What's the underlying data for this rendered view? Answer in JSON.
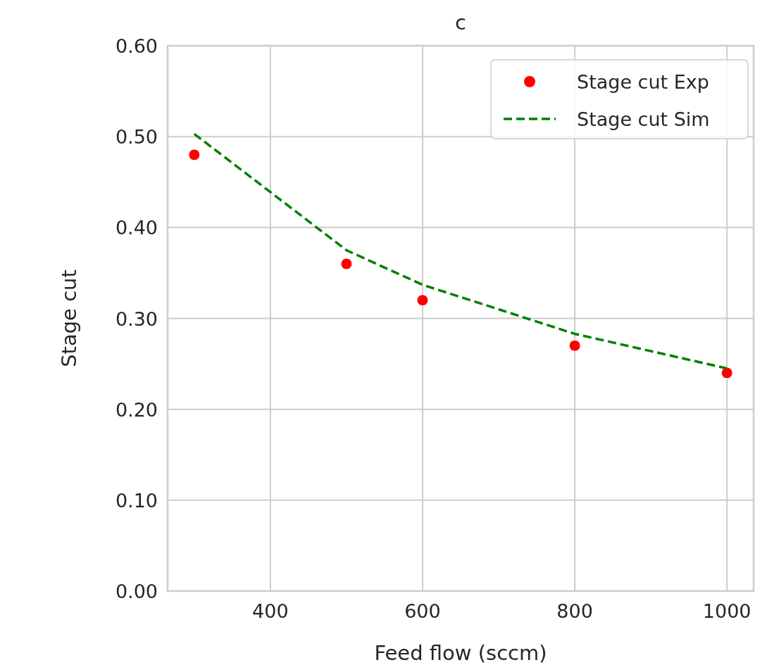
{
  "chart_data": {
    "type": "scatter",
    "title": "c",
    "xlabel": "Feed flow (sccm)",
    "ylabel": "Stage cut",
    "xlim": [
      265,
      1035
    ],
    "xticks": [
      400,
      600,
      800,
      1000
    ],
    "ylim": [
      0,
      0.6
    ],
    "yticks": [
      {
        "value": 0,
        "label": "0.00"
      },
      {
        "value": 0.1,
        "label": "0.10"
      },
      {
        "value": 0.2,
        "label": "0.20"
      },
      {
        "value": 0.3,
        "label": "0.30"
      },
      {
        "value": 0.4,
        "label": "0.40"
      },
      {
        "value": 0.5,
        "label": "0.50"
      },
      {
        "value": 0.6,
        "label": "0.60"
      }
    ],
    "grid": true,
    "legend": "top right",
    "series": [
      {
        "name": "Stage cut Exp",
        "color": "#ff0000",
        "marker": "circle",
        "x": [
          300,
          500,
          600,
          800,
          1000
        ],
        "values": [
          0.48,
          0.36,
          0.32,
          0.27,
          0.24
        ]
      },
      {
        "name": "Stage cut Sim",
        "type": "line",
        "color": "#008000",
        "line_style": "dashed",
        "x": [
          300,
          500,
          600,
          800,
          1000
        ],
        "values": [
          0.503,
          0.375,
          0.337,
          0.283,
          0.245
        ]
      }
    ]
  }
}
